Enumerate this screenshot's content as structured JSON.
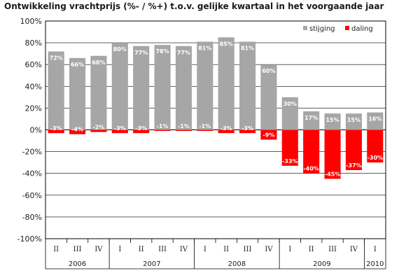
{
  "chart_data": {
    "type": "bar",
    "title": "Ontwikkeling vrachtprijs (%- / %+) t.o.v. gelijke kwartaal in het voorgaande jaar",
    "categories": [
      "II",
      "III",
      "IV",
      "I",
      "II",
      "III",
      "IV",
      "I",
      "II",
      "III",
      "IV",
      "I",
      "II",
      "III",
      "IV",
      "I"
    ],
    "groups": [
      {
        "label": "2006",
        "count": 3
      },
      {
        "label": "2007",
        "count": 4
      },
      {
        "label": "2008",
        "count": 4
      },
      {
        "label": "2009",
        "count": 4
      },
      {
        "label": "2010",
        "count": 1
      }
    ],
    "series": [
      {
        "name": "stijging",
        "color": "#a6a6a6",
        "values": [
          72,
          66,
          68,
          80,
          77,
          78,
          77,
          81,
          85,
          81,
          60,
          30,
          17,
          15,
          15,
          16
        ],
        "labels": [
          "72%",
          "66%",
          "68%",
          "80%",
          "77%",
          "78%",
          "77%",
          "81%",
          "85%",
          "81%",
          "60%",
          "30%",
          "17%",
          "15%",
          "15%",
          "16%"
        ]
      },
      {
        "name": "daling",
        "color": "#ff0000",
        "values": [
          -3,
          -4,
          -2,
          -3,
          -3,
          -1,
          -1,
          -1,
          -3,
          -3,
          -9,
          -33,
          -40,
          -45,
          -37,
          -30
        ],
        "labels": [
          "-3%",
          "-4%",
          "-2%",
          "-3%",
          "-3%",
          "-1%",
          "-1%",
          "-1%",
          "-3%",
          "-3%",
          "-9%",
          "-33%",
          "-40%",
          "-45%",
          "-37%",
          "-30%"
        ]
      }
    ],
    "ylim": [
      -100,
      100
    ],
    "yticks": [
      100,
      80,
      60,
      40,
      20,
      0,
      -20,
      -40,
      -60,
      -80,
      -100
    ],
    "ytick_labels": [
      "100%",
      "80%",
      "60%",
      "40%",
      "20%",
      "0%",
      "-20%",
      "-40%",
      "-60%",
      "-80%",
      "-100%"
    ],
    "grid": true,
    "legend_position": "top-right"
  }
}
